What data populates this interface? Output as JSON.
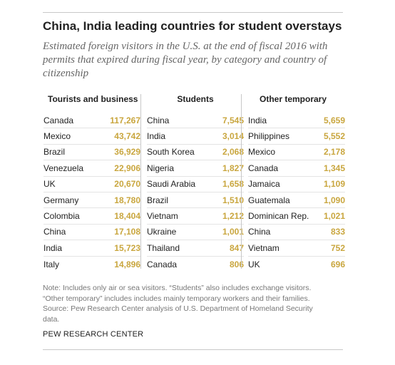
{
  "chart_data": {
    "type": "table",
    "title": "China, India leading countries for student overstays",
    "subtitle": "Estimated foreign visitors in the U.S. at the end of fiscal 2016 with permits that expired during fiscal year, by category and country of citizenship",
    "columns": [
      {
        "name": "Tourists and business",
        "rows": [
          {
            "country": "Canada",
            "value": "117,267"
          },
          {
            "country": "Mexico",
            "value": "43,742"
          },
          {
            "country": "Brazil",
            "value": "36,929"
          },
          {
            "country": "Venezuela",
            "value": "22,906"
          },
          {
            "country": "UK",
            "value": "20,670"
          },
          {
            "country": "Germany",
            "value": "18,780"
          },
          {
            "country": "Colombia",
            "value": "18,404"
          },
          {
            "country": "China",
            "value": "17,108"
          },
          {
            "country": "India",
            "value": "15,723"
          },
          {
            "country": "Italy",
            "value": "14,896"
          }
        ]
      },
      {
        "name": "Students",
        "rows": [
          {
            "country": "China",
            "value": "7,545"
          },
          {
            "country": "India",
            "value": "3,014"
          },
          {
            "country": "South Korea",
            "value": "2,068"
          },
          {
            "country": "Nigeria",
            "value": "1,827"
          },
          {
            "country": "Saudi Arabia",
            "value": "1,658"
          },
          {
            "country": "Brazil",
            "value": "1,510"
          },
          {
            "country": "Vietnam",
            "value": "1,212"
          },
          {
            "country": "Ukraine",
            "value": "1,001"
          },
          {
            "country": "Thailand",
            "value": "847"
          },
          {
            "country": "Canada",
            "value": "806"
          }
        ]
      },
      {
        "name": "Other temporary",
        "rows": [
          {
            "country": "India",
            "value": "5,659"
          },
          {
            "country": "Philippines",
            "value": "5,552"
          },
          {
            "country": "Mexico",
            "value": "2,178"
          },
          {
            "country": "Canada",
            "value": "1,345"
          },
          {
            "country": "Jamaica",
            "value": "1,109"
          },
          {
            "country": "Guatemala",
            "value": "1,090"
          },
          {
            "country": "Dominican Rep.",
            "value": "1,021"
          },
          {
            "country": "China",
            "value": "833"
          },
          {
            "country": "Vietnam",
            "value": "752"
          },
          {
            "country": "UK",
            "value": "696"
          }
        ]
      }
    ],
    "value_color": "#c9a63e"
  },
  "footer": {
    "note_lines": [
      "Note: Includes only air or sea visitors. “Students” also includes exchange visitors.",
      "“Other temporary” includes includes mainly temporary workers and their families.",
      "Source: Pew Research Center analysis of U.S. Department of Homeland Security",
      "data."
    ],
    "org": "PEW RESEARCH CENTER"
  }
}
